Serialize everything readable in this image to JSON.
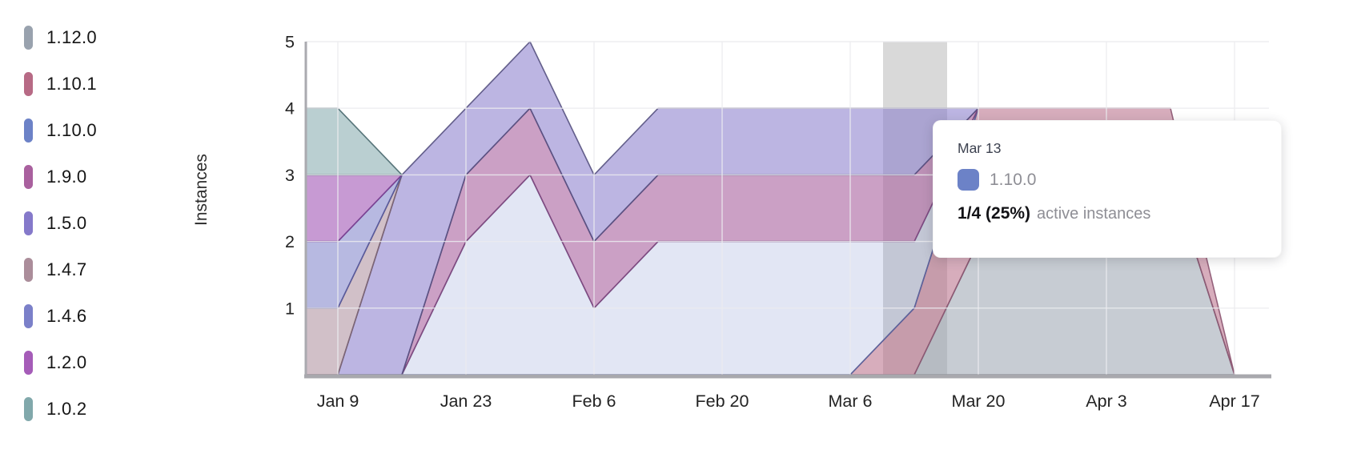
{
  "y_axis_title": "Instances",
  "tooltip": {
    "date": "Mar 13",
    "series_label": "1.10.0",
    "swatch_color": "#6c82c7",
    "value": "1/4 (25%)",
    "caption": "active instances"
  },
  "chart_data": {
    "type": "area",
    "stacked": true,
    "title": "",
    "xlabel": "",
    "ylabel": "Instances",
    "ylim": [
      0,
      5
    ],
    "y_ticks": [
      1,
      2,
      3,
      4,
      5
    ],
    "grid": true,
    "legend_position": "left",
    "x": [
      "Jan 9",
      "Jan 16",
      "Jan 23",
      "Jan 30",
      "Feb 6",
      "Feb 13",
      "Feb 20",
      "Feb 27",
      "Mar 6",
      "Mar 13",
      "Mar 20",
      "Mar 27",
      "Apr 3",
      "Apr 10",
      "Apr 17"
    ],
    "x_tick_labels": [
      "Jan 9",
      "Jan 23",
      "Feb 6",
      "Feb 20",
      "Mar 6",
      "Mar 20",
      "Apr 3",
      "Apr 17"
    ],
    "hover_week": "Mar 13",
    "series": [
      {
        "name": "1.12.0",
        "color": "#99a2ae",
        "stroke": "#6e7680",
        "fill_opacity": 0.55,
        "values": [
          0,
          0,
          0,
          0,
          0,
          0,
          0,
          0,
          0,
          0,
          2,
          3,
          3,
          3,
          0
        ]
      },
      {
        "name": "1.10.1",
        "color": "#b76a85",
        "stroke": "#8c5571",
        "fill_opacity": 0.55,
        "values": [
          0,
          0,
          0,
          0,
          0,
          0,
          0,
          0,
          0,
          1,
          2,
          1,
          1,
          1,
          0
        ]
      },
      {
        "name": "1.10.0",
        "color": "#6c82c7",
        "stroke": "#55639f",
        "fill_opacity": 0.2,
        "values": [
          0,
          0,
          2,
          3,
          1,
          2,
          2,
          2,
          2,
          1,
          0,
          0,
          0,
          0,
          0
        ]
      },
      {
        "name": "1.9.0",
        "color": "#a9609e",
        "stroke": "#7f477c",
        "fill_opacity": 0.6,
        "values": [
          0,
          0,
          1,
          1,
          1,
          1,
          1,
          1,
          1,
          1,
          0,
          0,
          0,
          0,
          0
        ]
      },
      {
        "name": "1.5.0",
        "color": "#8579ca",
        "stroke": "#55517f",
        "fill_opacity": 0.55,
        "values": [
          0,
          3,
          1,
          1,
          1,
          1,
          1,
          1,
          1,
          1,
          0,
          0,
          0,
          0,
          0
        ]
      },
      {
        "name": "1.4.7",
        "color": "#ab8d9a",
        "stroke": "#7c6472",
        "fill_opacity": 0.55,
        "values": [
          1,
          0,
          0,
          0,
          0,
          0,
          0,
          0,
          0,
          0,
          0,
          0,
          0,
          0,
          0
        ]
      },
      {
        "name": "1.4.6",
        "color": "#7b80c9",
        "stroke": "#54589c",
        "fill_opacity": 0.55,
        "values": [
          1,
          0,
          0,
          0,
          0,
          0,
          0,
          0,
          0,
          0,
          0,
          0,
          0,
          0,
          0
        ]
      },
      {
        "name": "1.2.0",
        "color": "#a55cb8",
        "stroke": "#7b3f90",
        "fill_opacity": 0.62,
        "values": [
          1,
          0,
          0,
          0,
          0,
          0,
          0,
          0,
          0,
          0,
          0,
          0,
          0,
          0,
          0
        ]
      },
      {
        "name": "1.0.2",
        "color": "#81a8ab",
        "stroke": "#49686e",
        "fill_opacity": 0.55,
        "values": [
          1,
          0,
          0,
          0,
          0,
          0,
          0,
          0,
          0,
          0,
          0,
          0,
          0,
          0,
          0
        ]
      }
    ]
  },
  "colors": {
    "grid": "#ebebee",
    "hover_band": "#d9d9d9",
    "axis_spine": "#aaaaaf",
    "baseline": "#a8a8ad",
    "tick_text": "#232323"
  }
}
